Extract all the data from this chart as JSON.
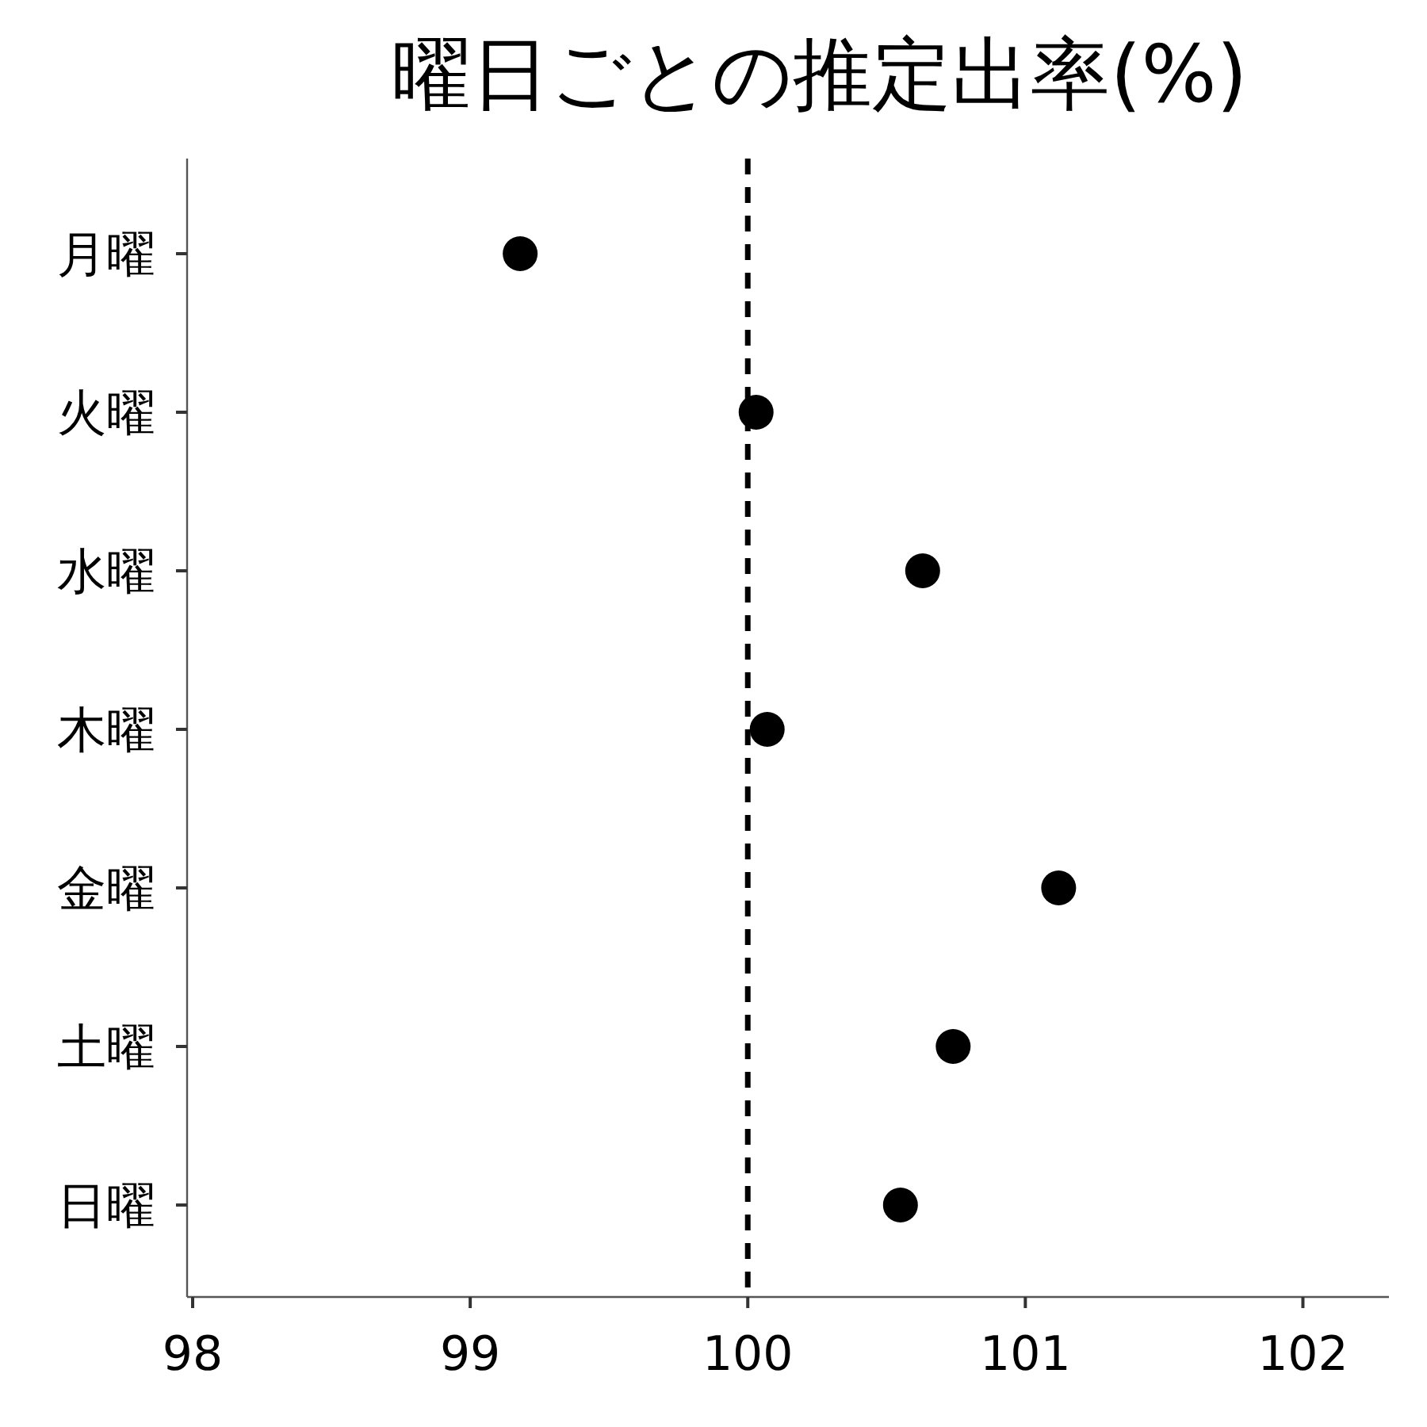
{
  "chart_data": {
    "type": "scatter",
    "title": "曜日ごとの推定出率(%)",
    "orientation": "horizontal",
    "categories": [
      "月曜",
      "火曜",
      "水曜",
      "木曜",
      "金曜",
      "土曜",
      "日曜"
    ],
    "values": [
      99.18,
      100.03,
      100.63,
      100.07,
      101.12,
      100.74,
      100.55
    ],
    "color": "#000000",
    "marker": "circle",
    "xlim": [
      97.98,
      102.31
    ],
    "xticks": [
      98,
      99,
      100,
      101,
      102
    ],
    "ref_lines": [
      {
        "axis": "x",
        "value": 100,
        "color": "#000000",
        "line_style": "dashed"
      }
    ],
    "grid": false
  }
}
